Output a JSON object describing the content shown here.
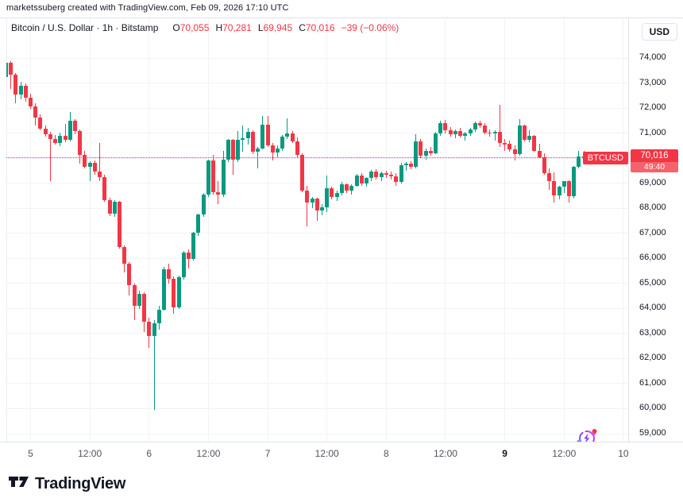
{
  "attribution": "marketssuberg created with TradingView.com, Feb 09, 2026 17:10 UTC",
  "legend": {
    "title": "Bitcoin / U.S. Dollar · 1h · Bitstamp",
    "o_label": "O",
    "o_value": "70,055",
    "h_label": "H",
    "h_value": "70,281",
    "l_label": "L",
    "l_value": "69,945",
    "c_label": "C",
    "c_value": "70,016",
    "change": "−39 (−0.06%)"
  },
  "currency_button": "USD",
  "price_label": {
    "symbol": "BTCUSD",
    "price": "70,016",
    "countdown": "49:40"
  },
  "footer": {
    "brand": "TradingView"
  },
  "colors": {
    "up": "#089981",
    "down": "#F23645",
    "accent_red": "#F23645",
    "grid": "#F0F3FA",
    "axis_text": "#131722",
    "icon_purple": "#A13BFF",
    "icon_blue": "#536DFE"
  },
  "chart_data": {
    "type": "candlestick",
    "symbol": "BTCUSD",
    "exchange": "Bitstamp",
    "interval": "1h",
    "last_price": 70016,
    "price_axis": {
      "min": 58600,
      "max": 74450
    },
    "grid": true,
    "price_ticks": [
      {
        "value": 74000,
        "label": "74,000"
      },
      {
        "value": 73000,
        "label": "73,000"
      },
      {
        "value": 72000,
        "label": "72,000"
      },
      {
        "value": 71000,
        "label": "71,000"
      },
      {
        "value": 70000,
        "label": "70,000"
      },
      {
        "value": 69000,
        "label": "69,000"
      },
      {
        "value": 68000,
        "label": "68,000"
      },
      {
        "value": 67000,
        "label": "67,000"
      },
      {
        "value": 66000,
        "label": "66,000"
      },
      {
        "value": 65000,
        "label": "65,000"
      },
      {
        "value": 64000,
        "label": "64,000"
      },
      {
        "value": 63000,
        "label": "63,000"
      },
      {
        "value": 62000,
        "label": "62,000"
      },
      {
        "value": 61000,
        "label": "61,000"
      },
      {
        "value": 60000,
        "label": "60,000"
      },
      {
        "value": 59000,
        "label": "59,000"
      }
    ],
    "time_labels": [
      {
        "label": "5",
        "index": 5,
        "bold": false
      },
      {
        "label": "12:00",
        "index": 17,
        "bold": false
      },
      {
        "label": "6",
        "index": 29,
        "bold": false
      },
      {
        "label": "12:00",
        "index": 41,
        "bold": false
      },
      {
        "label": "7",
        "index": 53,
        "bold": false
      },
      {
        "label": "12:00",
        "index": 65,
        "bold": false
      },
      {
        "label": "8",
        "index": 77,
        "bold": false
      },
      {
        "label": "12:00",
        "index": 89,
        "bold": false
      },
      {
        "label": "9",
        "index": 101,
        "bold": true
      },
      {
        "label": "12:00",
        "index": 113,
        "bold": false
      },
      {
        "label": "10",
        "index": 125,
        "bold": false
      }
    ],
    "candles": [
      [
        73250,
        73960,
        73100,
        73800
      ],
      [
        73800,
        73860,
        72760,
        73320
      ],
      [
        73320,
        73400,
        72200,
        72550
      ],
      [
        72550,
        73060,
        72350,
        72900
      ],
      [
        72900,
        72980,
        72250,
        72420
      ],
      [
        72420,
        72560,
        71960,
        72050
      ],
      [
        72050,
        72180,
        71300,
        71620
      ],
      [
        71620,
        71760,
        71120,
        71180
      ],
      [
        71180,
        71320,
        70850,
        70950
      ],
      [
        70950,
        71060,
        69100,
        70780
      ],
      [
        70780,
        70930,
        70550,
        70620
      ],
      [
        70620,
        71010,
        70480,
        70890
      ],
      [
        70890,
        71360,
        70640,
        70720
      ],
      [
        70720,
        71830,
        70660,
        71480
      ],
      [
        71480,
        71560,
        70960,
        71080
      ],
      [
        71080,
        71160,
        69770,
        70130
      ],
      [
        70130,
        70290,
        69600,
        69660
      ],
      [
        69660,
        69870,
        69090,
        69820
      ],
      [
        69820,
        69900,
        69350,
        69480
      ],
      [
        69480,
        70620,
        69100,
        69250
      ],
      [
        69250,
        69340,
        68260,
        68330
      ],
      [
        68330,
        68420,
        67700,
        67790
      ],
      [
        67790,
        68310,
        67650,
        68270
      ],
      [
        68270,
        68300,
        66380,
        66450
      ],
      [
        66450,
        66520,
        65440,
        65780
      ],
      [
        65780,
        65850,
        64530,
        64930
      ],
      [
        64930,
        64990,
        63540,
        64100
      ],
      [
        64100,
        64700,
        63980,
        64590
      ],
      [
        64590,
        64660,
        63060,
        63470
      ],
      [
        63470,
        63630,
        62430,
        62900
      ],
      [
        62900,
        63550,
        59950,
        63400
      ],
      [
        63400,
        64100,
        63150,
        63950
      ],
      [
        63950,
        65650,
        63900,
        65550
      ],
      [
        65550,
        65800,
        65000,
        65180
      ],
      [
        65180,
        65280,
        63800,
        64050
      ],
      [
        64050,
        65300,
        63980,
        65250
      ],
      [
        65250,
        66300,
        65150,
        66220
      ],
      [
        66220,
        66350,
        65600,
        65980
      ],
      [
        65980,
        67050,
        65900,
        67020
      ],
      [
        67020,
        67800,
        66900,
        67750
      ],
      [
        67750,
        68600,
        67650,
        68540
      ],
      [
        68540,
        69950,
        68440,
        69910
      ],
      [
        69910,
        70130,
        68550,
        68650
      ],
      [
        68650,
        69090,
        68170,
        68560
      ],
      [
        68560,
        70290,
        68460,
        69925
      ],
      [
        69925,
        70780,
        69830,
        70720
      ],
      [
        70720,
        70760,
        69340,
        69930
      ],
      [
        69930,
        71070,
        69850,
        70720
      ],
      [
        70720,
        71290,
        70250,
        70790
      ],
      [
        70790,
        71200,
        70550,
        71050
      ],
      [
        71050,
        71120,
        70150,
        70250
      ],
      [
        70250,
        70450,
        69600,
        70400
      ],
      [
        70400,
        71670,
        70350,
        71350
      ],
      [
        71350,
        71700,
        70450,
        70520
      ],
      [
        70520,
        70600,
        69900,
        70230
      ],
      [
        70230,
        70500,
        70050,
        70380
      ],
      [
        70380,
        70920,
        70300,
        70860
      ],
      [
        70860,
        71600,
        70760,
        71000
      ],
      [
        71000,
        71080,
        70600,
        70680
      ],
      [
        70680,
        70830,
        70050,
        70130
      ],
      [
        70130,
        70200,
        68650,
        68700
      ],
      [
        68700,
        68900,
        67280,
        68230
      ],
      [
        68230,
        68440,
        68000,
        68390
      ],
      [
        68390,
        68430,
        67500,
        67900
      ],
      [
        67900,
        68150,
        67720,
        68050
      ],
      [
        68050,
        69300,
        67850,
        68800
      ],
      [
        68800,
        68850,
        68350,
        68450
      ],
      [
        68450,
        68700,
        68300,
        68600
      ],
      [
        68600,
        69050,
        68500,
        68950
      ],
      [
        68950,
        69000,
        68600,
        68700
      ],
      [
        68700,
        68950,
        68550,
        68900
      ],
      [
        68900,
        69370,
        68850,
        69300
      ],
      [
        69300,
        69400,
        68900,
        69000
      ],
      [
        69000,
        69250,
        68850,
        69200
      ],
      [
        69200,
        69530,
        69100,
        69450
      ],
      [
        69450,
        69560,
        69150,
        69250
      ],
      [
        69250,
        69450,
        69100,
        69400
      ],
      [
        69400,
        69500,
        69200,
        69350
      ],
      [
        69350,
        69480,
        69150,
        69270
      ],
      [
        69270,
        69400,
        68900,
        69050
      ],
      [
        69050,
        69800,
        69000,
        69720
      ],
      [
        69720,
        69850,
        69500,
        69780
      ],
      [
        69780,
        69880,
        69550,
        69650
      ],
      [
        69650,
        70950,
        69600,
        70680
      ],
      [
        70680,
        70780,
        70000,
        70100
      ],
      [
        70100,
        70400,
        69950,
        70300
      ],
      [
        70300,
        70450,
        70100,
        70200
      ],
      [
        70200,
        71050,
        70150,
        70990
      ],
      [
        70990,
        71480,
        70890,
        71410
      ],
      [
        71410,
        71520,
        71000,
        71100
      ],
      [
        71100,
        71250,
        70850,
        70950
      ],
      [
        70950,
        71150,
        70800,
        71080
      ],
      [
        71080,
        71220,
        70830,
        70900
      ],
      [
        70900,
        71050,
        70700,
        70990
      ],
      [
        70990,
        71200,
        70900,
        71150
      ],
      [
        71150,
        71450,
        71050,
        71390
      ],
      [
        71390,
        71500,
        71200,
        71310
      ],
      [
        71310,
        71400,
        70950,
        71020
      ],
      [
        71020,
        71150,
        70850,
        70980
      ],
      [
        70980,
        71120,
        70700,
        71050
      ],
      [
        71050,
        72130,
        70450,
        70600
      ],
      [
        70600,
        70750,
        70300,
        70560
      ],
      [
        70560,
        70700,
        70250,
        70350
      ],
      [
        70350,
        70500,
        69910,
        70150
      ],
      [
        70150,
        71560,
        70100,
        71290
      ],
      [
        71290,
        71340,
        70680,
        70730
      ],
      [
        70730,
        71100,
        70650,
        70880
      ],
      [
        70880,
        70920,
        70250,
        70300
      ],
      [
        70300,
        70560,
        69990,
        70050
      ],
      [
        70050,
        70180,
        69350,
        69400
      ],
      [
        69400,
        69600,
        68750,
        69080
      ],
      [
        69080,
        69440,
        68230,
        68500
      ],
      [
        68500,
        68900,
        68350,
        68860
      ],
      [
        68860,
        69100,
        68600,
        69070
      ],
      [
        69070,
        69120,
        68230,
        68490
      ],
      [
        68490,
        69700,
        68400,
        69650
      ],
      [
        69650,
        70300,
        69600,
        70055
      ],
      [
        70055,
        70281,
        69945,
        70016
      ]
    ]
  }
}
